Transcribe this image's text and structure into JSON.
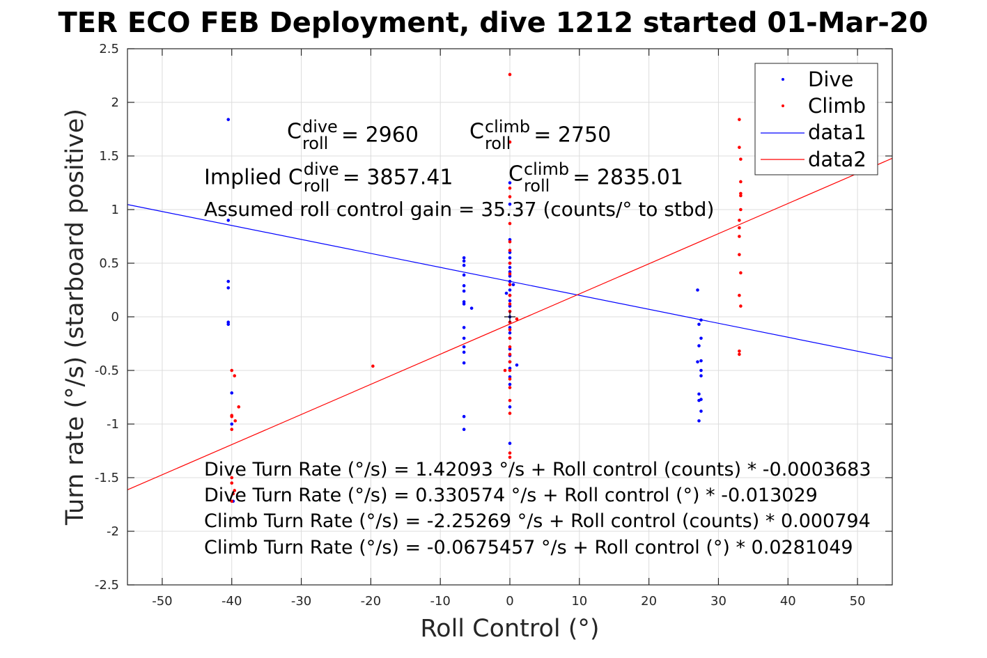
{
  "chart_data": {
    "type": "scatter",
    "title": "TER ECO FEB Deployment, dive 1212 started 01-Mar-20",
    "xlabel": "Roll Control (°)",
    "ylabel": "Turn rate (°/s) (starboard positive)",
    "xlim": [
      -55,
      55
    ],
    "ylim": [
      -2.5,
      2.5
    ],
    "xticks": [
      "-50",
      "-40",
      "-30",
      "-20",
      "-10",
      "0",
      "10",
      "20",
      "30",
      "40",
      "50"
    ],
    "yticks": [
      "-2.5",
      "-2",
      "-1.5",
      "-1",
      "-0.5",
      "0",
      "0.5",
      "1",
      "1.5",
      "2",
      "2.5"
    ],
    "grid": true,
    "legend_position": "top-right",
    "legend": [
      "Dive",
      "Climb",
      "data1",
      "data2"
    ],
    "colors": {
      "dive": "#0000ff",
      "climb": "#ff0000",
      "axis": "#262626",
      "grid": "#dcdcdc"
    },
    "series": [
      {
        "name": "Dive",
        "style": "points",
        "color": "#0000ff",
        "points": [
          [
            -40.5,
            1.84
          ],
          [
            -40.5,
            0.9
          ],
          [
            -40.5,
            0.33
          ],
          [
            -40.5,
            0.27
          ],
          [
            -40.5,
            -0.05
          ],
          [
            -40.5,
            -0.07
          ],
          [
            -40,
            -0.71
          ],
          [
            -40,
            -1.0
          ],
          [
            -39.8,
            -1.72
          ],
          [
            -6.6,
            0.55
          ],
          [
            -6.6,
            0.52
          ],
          [
            -6.6,
            0.48
          ],
          [
            -6.6,
            0.39
          ],
          [
            -6.6,
            0.29
          ],
          [
            -6.6,
            0.24
          ],
          [
            -6.6,
            0.14
          ],
          [
            -6.6,
            0.12
          ],
          [
            -6.6,
            -0.1
          ],
          [
            -6.6,
            -0.2
          ],
          [
            -6.6,
            -0.28
          ],
          [
            -6.6,
            -0.33
          ],
          [
            -6.6,
            -0.43
          ],
          [
            -6.6,
            -0.93
          ],
          [
            -6.6,
            -1.05
          ],
          [
            -5.5,
            0.08
          ],
          [
            0,
            1.25
          ],
          [
            0,
            1.05
          ],
          [
            0,
            0.72
          ],
          [
            0,
            0.6
          ],
          [
            0,
            0.55
          ],
          [
            0,
            0.5
          ],
          [
            0,
            0.46
          ],
          [
            0,
            0.42
          ],
          [
            0,
            0.38
          ],
          [
            0,
            0.33
          ],
          [
            0,
            0.3
          ],
          [
            0,
            0.25
          ],
          [
            0,
            0.2
          ],
          [
            0,
            0.15
          ],
          [
            0,
            0.1
          ],
          [
            0,
            0.05
          ],
          [
            0,
            0
          ],
          [
            0,
            -0.05
          ],
          [
            0,
            -0.1
          ],
          [
            0,
            -0.15
          ],
          [
            0,
            -0.2
          ],
          [
            0,
            -0.3
          ],
          [
            0,
            -0.36
          ],
          [
            0,
            -0.42
          ],
          [
            0,
            -0.48
          ],
          [
            0,
            -0.56
          ],
          [
            0,
            -0.63
          ],
          [
            0,
            -0.84
          ],
          [
            0,
            -1.18
          ],
          [
            1,
            -0.45
          ],
          [
            0.5,
            0.3
          ],
          [
            -0.5,
            0.22
          ],
          [
            27,
            -0.42
          ],
          [
            27,
            0.25
          ],
          [
            27.2,
            -0.07
          ],
          [
            27.2,
            -0.27
          ],
          [
            27.2,
            -0.72
          ],
          [
            27.2,
            -0.78
          ],
          [
            27.2,
            -0.97
          ],
          [
            27.5,
            -0.03
          ],
          [
            27.5,
            -0.2
          ],
          [
            27.5,
            -0.41
          ],
          [
            27.5,
            -0.5
          ],
          [
            27.5,
            -0.55
          ],
          [
            27.5,
            -0.77
          ],
          [
            27.5,
            -0.88
          ]
        ]
      },
      {
        "name": "Climb",
        "style": "points",
        "color": "#ff0000",
        "points": [
          [
            -40,
            -0.5
          ],
          [
            -39.6,
            -0.55
          ],
          [
            -39,
            -0.84
          ],
          [
            -39.5,
            -0.97
          ],
          [
            -40,
            -0.92
          ],
          [
            -40,
            -0.93
          ],
          [
            -40,
            -1.05
          ],
          [
            -40,
            -1.5
          ],
          [
            -40,
            -1.55
          ],
          [
            -39.6,
            -1.62
          ],
          [
            -39.8,
            -1.65
          ],
          [
            -40,
            -1.72
          ],
          [
            -19.7,
            -0.46
          ],
          [
            0,
            2.26
          ],
          [
            0,
            1.63
          ],
          [
            0,
            1.2
          ],
          [
            0,
            1.12
          ],
          [
            0,
            0.87
          ],
          [
            0,
            0.7
          ],
          [
            0,
            0.62
          ],
          [
            0,
            0.5
          ],
          [
            0,
            0.4
          ],
          [
            0,
            0.3
          ],
          [
            0,
            0.2
          ],
          [
            0,
            0.12
          ],
          [
            0,
            0.05
          ],
          [
            0,
            -0.05
          ],
          [
            0,
            -0.12
          ],
          [
            0,
            -0.2
          ],
          [
            0,
            -0.28
          ],
          [
            0,
            -0.35
          ],
          [
            0,
            -0.42
          ],
          [
            0,
            -0.5
          ],
          [
            0,
            -0.58
          ],
          [
            0,
            -0.66
          ],
          [
            0,
            -0.78
          ],
          [
            0,
            -0.9
          ],
          [
            0,
            -1.27
          ],
          [
            0,
            -1.31
          ],
          [
            -0.7,
            -0.5
          ],
          [
            1,
            -0.02
          ],
          [
            33,
            1.84
          ],
          [
            33,
            1.58
          ],
          [
            33.2,
            1.47
          ],
          [
            33.2,
            1.26
          ],
          [
            33.2,
            1.15
          ],
          [
            33.2,
            1.13
          ],
          [
            33.2,
            1.0
          ],
          [
            33,
            0.9
          ],
          [
            33,
            0.83
          ],
          [
            33,
            0.75
          ],
          [
            33,
            0.58
          ],
          [
            33.2,
            0.41
          ],
          [
            33,
            0.2
          ],
          [
            33.2,
            0.1
          ],
          [
            33,
            -0.32
          ],
          [
            33,
            -0.35
          ]
        ]
      },
      {
        "name": "data1",
        "style": "line",
        "color": "#0000ff",
        "intercept": 0.330574,
        "slope": -0.013029
      },
      {
        "name": "data2",
        "style": "line",
        "color": "#ff0000",
        "intercept": -0.0675457,
        "slope": 0.0281049
      }
    ],
    "annotations": {
      "c_sym": "C",
      "roll_sub": "roll",
      "dive_sup": "dive",
      "climb_sup": "climb",
      "c_dive_value": "= 2960",
      "c_climb_value": "= 2750",
      "implied_prefix": "Implied C",
      "implied_dive_value": "= 3857.41",
      "implied_climb_value": "= 2835.01",
      "gain_text": "Assumed roll control gain = 35.37 (counts/° to stbd)",
      "eq1": "Dive Turn Rate (°/s) = 1.42093 °/s + Roll control (counts) * -0.0003683",
      "eq2": "Dive Turn Rate (°/s) = 0.330574 °/s + Roll control (°) * -0.013029",
      "eq3": "Climb Turn Rate (°/s) = -2.25269 °/s + Roll control (counts) * 0.000794",
      "eq4": "Climb Turn Rate (°/s) = -0.0675457 °/s + Roll control (°) * 0.0281049"
    }
  }
}
